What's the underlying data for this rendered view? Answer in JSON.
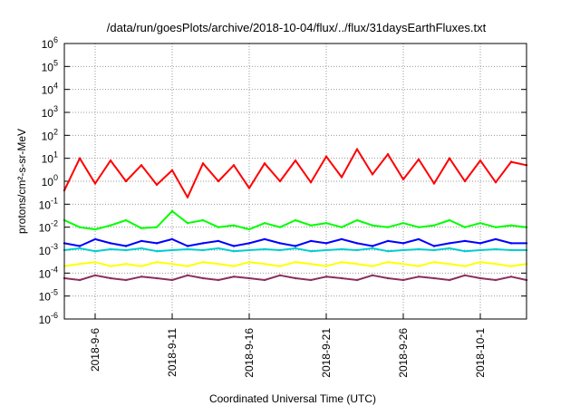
{
  "chart_data": {
    "type": "line",
    "title": "/data/run/goesPlots/archive/2018-10-04/flux/../flux/31daysEarthFluxes.txt",
    "xlabel": "Coordinated Universal Time (UTC)",
    "ylabel": "protons/cm²-s-sr-MeV",
    "yscale": "log",
    "ylim": [
      1e-06,
      1000000.0
    ],
    "xlim": [
      "2018-09-04",
      "2018-10-04"
    ],
    "grid": true,
    "x_ticks": [
      "2018-9-6",
      "2018-9-11",
      "2018-9-16",
      "2018-9-21",
      "2018-9-26",
      "2018-10-1"
    ],
    "y_ticks": [
      {
        "base": "10",
        "exp": "6"
      },
      {
        "base": "10",
        "exp": "5"
      },
      {
        "base": "10",
        "exp": "4"
      },
      {
        "base": "10",
        "exp": "3"
      },
      {
        "base": "10",
        "exp": "2"
      },
      {
        "base": "10",
        "exp": "1"
      },
      {
        "base": "10",
        "exp": "0"
      },
      {
        "base": "10",
        "exp": "-1"
      },
      {
        "base": "10",
        "exp": "-2"
      },
      {
        "base": "10",
        "exp": "-3"
      },
      {
        "base": "10",
        "exp": "-4"
      },
      {
        "base": "10",
        "exp": "-5"
      },
      {
        "base": "10",
        "exp": "-6"
      }
    ],
    "series": [
      {
        "color": "#ff0000",
        "x": [
          "2018-09-04",
          "2018-09-05",
          "2018-09-06",
          "2018-09-07",
          "2018-09-08",
          "2018-09-09",
          "2018-09-10",
          "2018-09-11",
          "2018-09-12",
          "2018-09-13",
          "2018-09-14",
          "2018-09-15",
          "2018-09-16",
          "2018-09-17",
          "2018-09-18",
          "2018-09-19",
          "2018-09-20",
          "2018-09-21",
          "2018-09-22",
          "2018-09-23",
          "2018-09-24",
          "2018-09-25",
          "2018-09-26",
          "2018-09-27",
          "2018-09-28",
          "2018-09-29",
          "2018-09-30",
          "2018-10-01",
          "2018-10-02",
          "2018-10-03",
          "2018-10-04"
        ],
        "values": [
          0.4,
          10,
          0.8,
          8,
          1,
          5,
          0.7,
          3,
          0.2,
          6,
          1,
          5,
          0.5,
          6,
          1,
          8,
          0.9,
          12,
          1.5,
          25,
          2,
          15,
          1.2,
          9,
          0.8,
          10,
          1,
          8,
          0.9,
          7,
          5
        ]
      },
      {
        "color": "#00ff00",
        "values": [
          0.02,
          0.01,
          0.008,
          0.012,
          0.02,
          0.009,
          0.01,
          0.05,
          0.015,
          0.02,
          0.01,
          0.012,
          0.008,
          0.015,
          0.01,
          0.02,
          0.012,
          0.015,
          0.01,
          0.02,
          0.012,
          0.01,
          0.015,
          0.01,
          0.012,
          0.02,
          0.01,
          0.015,
          0.01,
          0.012,
          0.01
        ]
      },
      {
        "color": "#0000ff",
        "values": [
          0.002,
          0.0015,
          0.003,
          0.002,
          0.0015,
          0.0025,
          0.002,
          0.003,
          0.0015,
          0.002,
          0.0025,
          0.0015,
          0.002,
          0.003,
          0.002,
          0.0015,
          0.0025,
          0.002,
          0.003,
          0.002,
          0.0015,
          0.0025,
          0.002,
          0.003,
          0.0015,
          0.002,
          0.0025,
          0.002,
          0.003,
          0.002,
          0.002
        ]
      },
      {
        "color": "#00ced1",
        "values": [
          0.001,
          0.0012,
          0.0009,
          0.0011,
          0.001,
          0.0012,
          0.0009,
          0.001,
          0.0011,
          0.001,
          0.0012,
          0.0009,
          0.001,
          0.0011,
          0.001,
          0.0012,
          0.0009,
          0.001,
          0.0011,
          0.001,
          0.0012,
          0.0009,
          0.001,
          0.0011,
          0.001,
          0.0012,
          0.0009,
          0.001,
          0.0011,
          0.001,
          0.001
        ]
      },
      {
        "color": "#ffff00",
        "values": [
          0.0002,
          0.00025,
          0.0003,
          0.0002,
          0.00025,
          0.0002,
          0.0003,
          0.00025,
          0.0002,
          0.0003,
          0.00025,
          0.0002,
          0.0003,
          0.00025,
          0.0002,
          0.0003,
          0.00025,
          0.0002,
          0.0003,
          0.00025,
          0.0002,
          0.0003,
          0.00025,
          0.0002,
          0.0003,
          0.00025,
          0.0002,
          0.0003,
          0.00025,
          0.0002,
          0.00025
        ]
      },
      {
        "color": "#8b2f5e",
        "values": [
          6e-05,
          5e-05,
          8e-05,
          6e-05,
          5e-05,
          7e-05,
          6e-05,
          5e-05,
          8e-05,
          6e-05,
          5e-05,
          7e-05,
          6e-05,
          5e-05,
          8e-05,
          6e-05,
          5e-05,
          7e-05,
          6e-05,
          5e-05,
          8e-05,
          6e-05,
          5e-05,
          7e-05,
          6e-05,
          5e-05,
          8e-05,
          6e-05,
          5e-05,
          7e-05,
          5e-05
        ]
      }
    ]
  }
}
